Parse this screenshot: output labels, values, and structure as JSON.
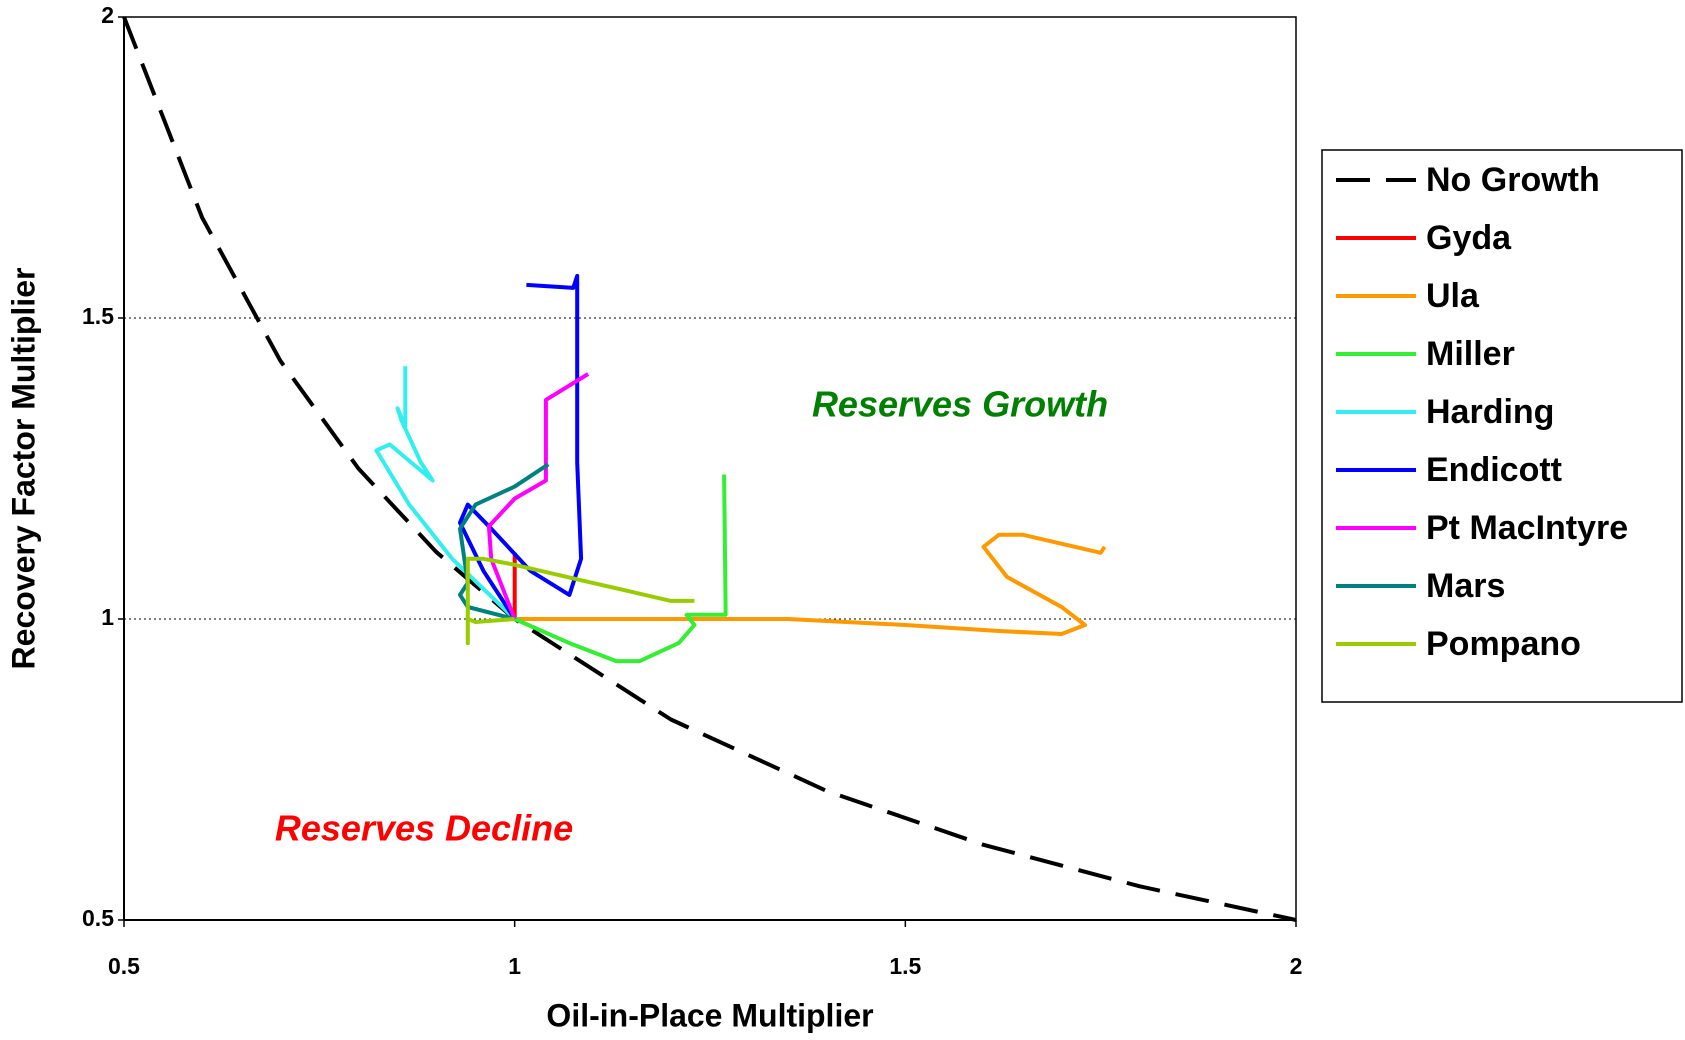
{
  "chart_data": {
    "type": "line",
    "x_label": "Oil-in-Place Multiplier",
    "y_label": "Recovery Factor Multiplier",
    "xlim": [
      0.5,
      2
    ],
    "xticks": [
      0.5,
      1,
      1.5,
      2
    ],
    "ylim": [
      0.5,
      2
    ],
    "yticks": [
      0.5,
      1,
      1.5,
      2
    ],
    "grid": true,
    "grid_style": "dotted",
    "legend": "right",
    "annotations": [
      {
        "text": "Reserves Growth",
        "color": "#008000"
      },
      {
        "text": "Reserves Decline",
        "color": "#ff0000"
      }
    ],
    "series": [
      {
        "name": "No Growth",
        "color": "#000000",
        "linestyle": "dashed",
        "x": [
          0.5,
          0.6,
          0.7,
          0.8,
          0.9,
          1,
          1.2,
          1.4,
          1.6,
          1.8,
          2
        ],
        "values": [
          2,
          1.667,
          1.429,
          1.25,
          1.111,
          1,
          0.833,
          0.714,
          0.625,
          0.556,
          0.5
        ]
      },
      {
        "name": "Gyda",
        "color": "#ff0000",
        "linestyle": "solid",
        "x": [
          1,
          1
        ],
        "values": [
          1,
          1.11
        ]
      },
      {
        "name": "Ula",
        "color": "#ff9900",
        "linestyle": "solid",
        "x": [
          1,
          1.35,
          1.5,
          1.62,
          1.7,
          1.73,
          1.7,
          1.63,
          1.6,
          1.62,
          1.65,
          1.75,
          1.755
        ],
        "values": [
          1,
          1,
          0.99,
          0.98,
          0.975,
          0.99,
          1.02,
          1.07,
          1.12,
          1.14,
          1.14,
          1.11,
          1.12
        ]
      },
      {
        "name": "Miller",
        "color": "#33ee33",
        "linestyle": "solid",
        "x": [
          1,
          1.07,
          1.13,
          1.16,
          1.21,
          1.23,
          1.22,
          1.27,
          1.27,
          1.268
        ],
        "values": [
          1,
          0.96,
          0.93,
          0.93,
          0.96,
          0.99,
          1.007,
          1.007,
          1.02,
          1.24
        ]
      },
      {
        "name": "Harding",
        "color": "#33eeee",
        "linestyle": "solid",
        "x": [
          1,
          0.92,
          0.865,
          0.823,
          0.84,
          0.895,
          0.88,
          0.855,
          0.85,
          0.86,
          0.86
        ],
        "values": [
          1,
          1.1,
          1.19,
          1.28,
          1.29,
          1.23,
          1.26,
          1.33,
          1.35,
          1.32,
          1.42
        ]
      },
      {
        "name": "Endicott",
        "color": "#0000ff",
        "linestyle": "solid",
        "x": [
          1,
          0.96,
          0.93,
          0.94,
          0.97,
          1.02,
          1.07,
          1.085,
          1.08,
          1.08,
          1.075,
          1.015
        ],
        "values": [
          1,
          1.08,
          1.16,
          1.19,
          1.15,
          1.08,
          1.04,
          1.1,
          1.26,
          1.57,
          1.55,
          1.555
        ]
      },
      {
        "name": "Pt MacIntyre",
        "color": "#ff00ff",
        "linestyle": "solid",
        "x": [
          1,
          0.97,
          0.967,
          1,
          1.04,
          1.04,
          1.094
        ],
        "values": [
          1,
          1.1,
          1.154,
          1.2,
          1.23,
          1.364,
          1.407
        ]
      },
      {
        "name": "Mars",
        "color": "#008080",
        "linestyle": "solid",
        "x": [
          1,
          0.94,
          0.93,
          0.94,
          0.93,
          0.95,
          1,
          1.043
        ],
        "values": [
          1,
          1.02,
          1.04,
          1.06,
          1.15,
          1.19,
          1.22,
          1.257
        ]
      },
      {
        "name": "Pompano",
        "color": "#99cc00",
        "linestyle": "solid",
        "x": [
          1,
          0.95,
          0.94,
          0.94,
          0.94,
          0.96,
          1,
          1.1,
          1.2,
          1.23
        ],
        "values": [
          1,
          0.995,
          1,
          0.96,
          1.1,
          1.1,
          1.09,
          1.06,
          1.03,
          1.03
        ]
      }
    ]
  }
}
